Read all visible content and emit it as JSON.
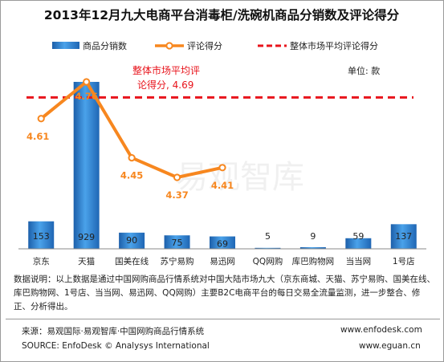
{
  "title": "2013年12月九大电商平台消毒柜/洗碗机商品分销数及评论得分",
  "legend": {
    "bars": "商品分销数",
    "line": "评论得分",
    "avg": "整体市场平均评论得分"
  },
  "unit_label": "单位: 款",
  "avg_annotation": [
    "整体市场平均评",
    "论得分, 4.69"
  ],
  "watermark": "易观智库",
  "colors": {
    "bar": "#2d7fcf",
    "line": "#f7871f",
    "avg_line": "#e8141c",
    "score_label": "#f7871f",
    "annotation": "#e8141c"
  },
  "chart_data": {
    "type": "bar",
    "categories": [
      "京东",
      "天猫",
      "国美在线",
      "苏宁易购",
      "易迅网",
      "QQ网购",
      "库巴购物网",
      "当当网",
      "1号店"
    ],
    "series": [
      {
        "name": "商品分销数",
        "type": "bar",
        "values": [
          153,
          929,
          90,
          75,
          69,
          5,
          9,
          59,
          137
        ]
      },
      {
        "name": "评论得分",
        "type": "line",
        "values": [
          4.61,
          4.76,
          4.45,
          4.37,
          4.41,
          null,
          null,
          null,
          null
        ]
      }
    ],
    "reference_line": {
      "name": "整体市场平均评论得分",
      "value": 4.69
    },
    "legend_position": "top",
    "grid": false
  },
  "note": "数据说明：以上数据是通过中国网购商品行情系统对中国大陆市场九大（京东商城、天猫、苏宁易购、国美在线、库巴购物网、1号店、当当网、易迅网、QQ网购）主要B2C电商平台的每日交易全流量监测，进一步整合、修正、分析得出。",
  "footer": {
    "source_cn": "来源：易观国际·易观智库·中国网购商品行情系统",
    "source_en": "SOURCE: EnfoDesk © Analysys International",
    "url1": "www.enfodesk.com",
    "url2": "www.eguan.cn"
  }
}
